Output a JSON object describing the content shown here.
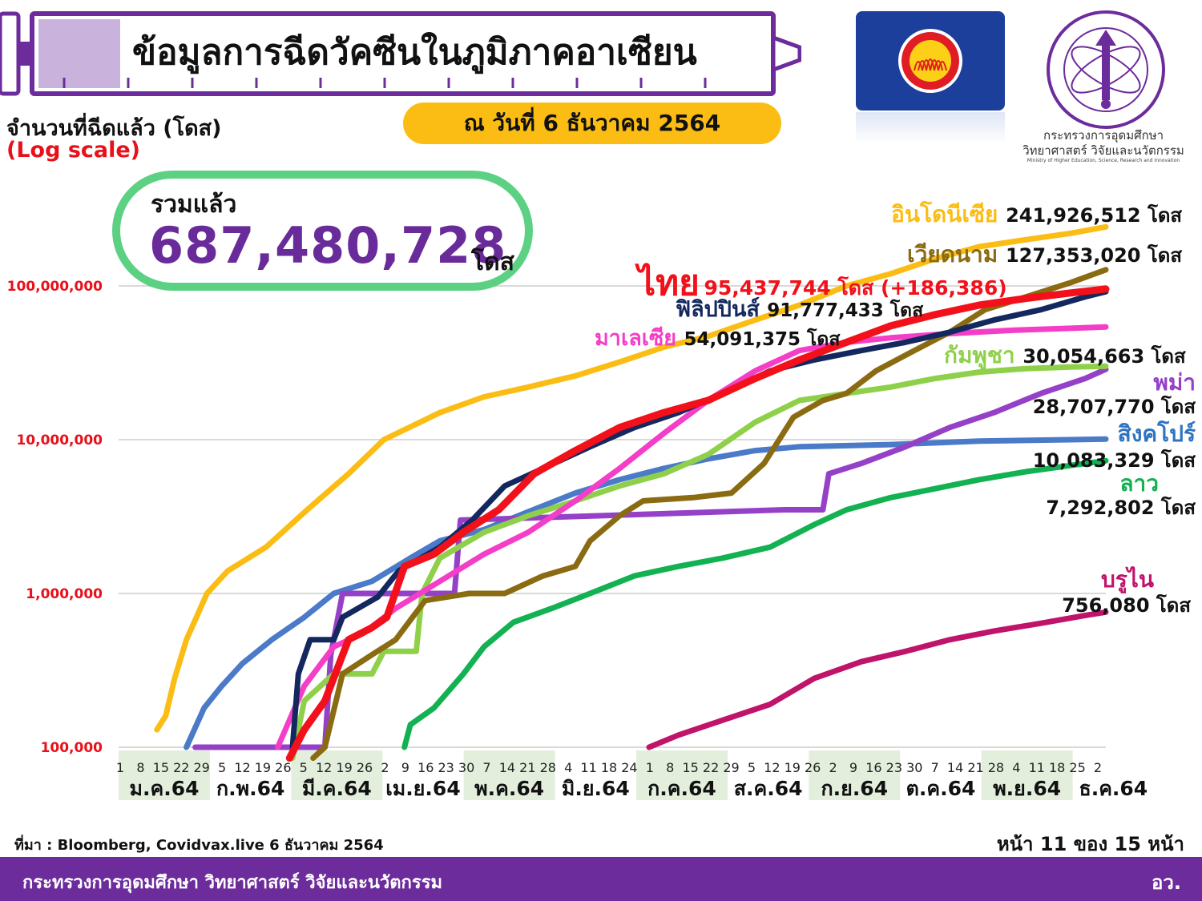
{
  "header": {
    "title": "ข้อมูลการฉีดวัคซีนในภูมิภาคอาเซียน",
    "date_label": "ณ วันที่ 6 ธันวาคม 2564"
  },
  "ministry": {
    "name_th": "กระทรวงการอุดมศึกษา วิทยาศาสตร์ วิจัยและนวัตกรรม",
    "name_en": "Ministry of Higher Education, Science, Research and Innovation"
  },
  "total": {
    "label": "รวมแล้ว",
    "value": "687,480,728",
    "unit": "โดส"
  },
  "source": "ที่มา : Bloomberg, Covidvax.live 6 ธันวาคม 2564",
  "page_label": "หน้า 11 ของ 15 หน้า",
  "footer": {
    "left": "กระทรวงการอุดมศึกษา วิทยาศาสตร์ วิจัยและนวัตกรรม",
    "right": "อว."
  },
  "colors": {
    "syringe": "#6d2c9b",
    "footer": "#6d2c9b",
    "date_pill": "#fbbd14",
    "total_border": "#5cd184",
    "month_band": "#e3efdc",
    "ytick": "#e8101a"
  },
  "chart_data": {
    "type": "line",
    "ylabel": "จำนวนที่ฉีดแล้ว (โดส)",
    "yscale_label": "(Log scale)",
    "log_scale": true,
    "ylim": [
      100000,
      300000000
    ],
    "yticks": [
      "100,000",
      "1,000,000",
      "10,000,000",
      "100,000,000"
    ],
    "ytick_values": [
      100000,
      1000000,
      10000000,
      100000000
    ],
    "grid": true,
    "day_ticks": [
      "1",
      "8",
      "15",
      "22",
      "29",
      "5",
      "12",
      "19",
      "26",
      "5",
      "12",
      "19",
      "26",
      "2",
      "9",
      "16",
      "23",
      "30",
      "7",
      "14",
      "21",
      "28",
      "4",
      "11",
      "18",
      "24",
      "1",
      "8",
      "15",
      "22",
      "29",
      "5",
      "12",
      "19",
      "26",
      "2",
      "9",
      "16",
      "23",
      "30",
      "7",
      "14",
      "21",
      "28",
      "4",
      "11",
      "18",
      "25",
      "2"
    ],
    "months": [
      {
        "label": "ม.ค.64",
        "shaded": true
      },
      {
        "label": "ก.พ.64",
        "shaded": false
      },
      {
        "label": "มี.ค.64",
        "shaded": true
      },
      {
        "label": "เม.ย.64",
        "shaded": false
      },
      {
        "label": "พ.ค.64",
        "shaded": true
      },
      {
        "label": "มิ.ย.64",
        "shaded": false
      },
      {
        "label": "ก.ค.64",
        "shaded": true
      },
      {
        "label": "ส.ค.64",
        "shaded": false
      },
      {
        "label": "ก.ย.64",
        "shaded": true
      },
      {
        "label": "ต.ค.64",
        "shaded": false
      },
      {
        "label": "พ.ย.64",
        "shaded": true
      },
      {
        "label": "ธ.ค.64",
        "shaded": false
      }
    ],
    "x_range": [
      "2021-01-01",
      "2021-12-02"
    ],
    "series": [
      {
        "name": "อินโดนีเซีย",
        "label": "241,926,512 โดส",
        "color": "#fbbd14",
        "points": [
          [
            "2021-01-14",
            130000
          ],
          [
            "2021-01-17",
            160000
          ],
          [
            "2021-01-20",
            280000
          ],
          [
            "2021-01-24",
            500000
          ],
          [
            "2021-01-31",
            1000000
          ],
          [
            "2021-02-07",
            1400000
          ],
          [
            "2021-02-20",
            2000000
          ],
          [
            "2021-03-06",
            3500000
          ],
          [
            "2021-03-20",
            6000000
          ],
          [
            "2021-04-01",
            10000000
          ],
          [
            "2021-04-20",
            15000000
          ],
          [
            "2021-05-05",
            19000000
          ],
          [
            "2021-05-20",
            22000000
          ],
          [
            "2021-06-05",
            26000000
          ],
          [
            "2021-06-20",
            32000000
          ],
          [
            "2021-07-05",
            40000000
          ],
          [
            "2021-07-20",
            47000000
          ],
          [
            "2021-08-05",
            60000000
          ],
          [
            "2021-08-20",
            75000000
          ],
          [
            "2021-09-05",
            100000000
          ],
          [
            "2021-09-20",
            120000000
          ],
          [
            "2021-10-05",
            150000000
          ],
          [
            "2021-10-20",
            180000000
          ],
          [
            "2021-11-05",
            200000000
          ],
          [
            "2021-11-20",
            220000000
          ],
          [
            "2021-12-02",
            241926512
          ]
        ]
      },
      {
        "name": "เวียดนาม",
        "label": "127,353,020 โดส",
        "color": "#8a6b12",
        "points": [
          [
            "2021-03-08",
            60000
          ],
          [
            "2021-03-12",
            100000
          ],
          [
            "2021-03-18",
            300000
          ],
          [
            "2021-03-28",
            400000
          ],
          [
            "2021-04-05",
            500000
          ],
          [
            "2021-04-15",
            900000
          ],
          [
            "2021-04-30",
            1000000
          ],
          [
            "2021-05-12",
            1000000
          ],
          [
            "2021-05-25",
            1300000
          ],
          [
            "2021-06-05",
            1500000
          ],
          [
            "2021-06-10",
            2200000
          ],
          [
            "2021-06-20",
            3200000
          ],
          [
            "2021-06-28",
            4000000
          ],
          [
            "2021-07-15",
            4200000
          ],
          [
            "2021-07-28",
            4500000
          ],
          [
            "2021-08-08",
            7000000
          ],
          [
            "2021-08-18",
            14000000
          ],
          [
            "2021-08-28",
            18000000
          ],
          [
            "2021-09-05",
            20000000
          ],
          [
            "2021-09-15",
            28000000
          ],
          [
            "2021-09-28",
            38000000
          ],
          [
            "2021-10-10",
            50000000
          ],
          [
            "2021-10-22",
            70000000
          ],
          [
            "2021-11-05",
            85000000
          ],
          [
            "2021-11-20",
            105000000
          ],
          [
            "2021-12-02",
            127353020
          ]
        ]
      },
      {
        "name": "ไทย",
        "label": "95,437,744 โดส (+186,386)",
        "color": "#f2101a",
        "points": [
          [
            "2021-02-28",
            80000
          ],
          [
            "2021-03-05",
            130000
          ],
          [
            "2021-03-12",
            200000
          ],
          [
            "2021-03-20",
            500000
          ],
          [
            "2021-03-28",
            600000
          ],
          [
            "2021-04-02",
            700000
          ],
          [
            "2021-04-08",
            1500000
          ],
          [
            "2021-04-18",
            1800000
          ],
          [
            "2021-04-28",
            2500000
          ],
          [
            "2021-05-10",
            3500000
          ],
          [
            "2021-05-22",
            6000000
          ],
          [
            "2021-06-05",
            8500000
          ],
          [
            "2021-06-20",
            12000000
          ],
          [
            "2021-07-05",
            15000000
          ],
          [
            "2021-07-20",
            18000000
          ],
          [
            "2021-08-05",
            25000000
          ],
          [
            "2021-08-20",
            33000000
          ],
          [
            "2021-09-05",
            43000000
          ],
          [
            "2021-09-20",
            55000000
          ],
          [
            "2021-10-05",
            65000000
          ],
          [
            "2021-10-20",
            75000000
          ],
          [
            "2021-11-05",
            83000000
          ],
          [
            "2021-11-20",
            90000000
          ],
          [
            "2021-12-02",
            95437744
          ]
        ]
      },
      {
        "name": "ฟิลิปปินส์",
        "label": "91,777,433 โดส",
        "color": "#13285e",
        "points": [
          [
            "2021-03-01",
            100000
          ],
          [
            "2021-03-03",
            300000
          ],
          [
            "2021-03-07",
            500000
          ],
          [
            "2021-03-15",
            500000
          ],
          [
            "2021-03-18",
            700000
          ],
          [
            "2021-03-30",
            950000
          ],
          [
            "2021-04-06",
            1400000
          ],
          [
            "2021-04-20",
            2000000
          ],
          [
            "2021-05-01",
            3000000
          ],
          [
            "2021-05-12",
            5000000
          ],
          [
            "2021-05-25",
            6500000
          ],
          [
            "2021-06-10",
            9000000
          ],
          [
            "2021-06-25",
            12000000
          ],
          [
            "2021-07-10",
            15000000
          ],
          [
            "2021-07-25",
            20000000
          ],
          [
            "2021-08-10",
            28000000
          ],
          [
            "2021-08-25",
            33000000
          ],
          [
            "2021-09-10",
            38000000
          ],
          [
            "2021-09-25",
            43000000
          ],
          [
            "2021-10-10",
            50000000
          ],
          [
            "2021-10-25",
            60000000
          ],
          [
            "2021-11-10",
            70000000
          ],
          [
            "2021-11-25",
            85000000
          ],
          [
            "2021-12-02",
            91777433
          ]
        ]
      },
      {
        "name": "มาเลเซีย",
        "label": "54,091,375 โดส",
        "color": "#f43ec7",
        "points": [
          [
            "2021-02-24",
            100000
          ],
          [
            "2021-03-05",
            250000
          ],
          [
            "2021-03-15",
            450000
          ],
          [
            "2021-03-25",
            550000
          ],
          [
            "2021-04-05",
            800000
          ],
          [
            "2021-04-20",
            1200000
          ],
          [
            "2021-05-05",
            1800000
          ],
          [
            "2021-05-20",
            2500000
          ],
          [
            "2021-06-05",
            4000000
          ],
          [
            "2021-06-20",
            6500000
          ],
          [
            "2021-07-05",
            11000000
          ],
          [
            "2021-07-20",
            18000000
          ],
          [
            "2021-08-05",
            28000000
          ],
          [
            "2021-08-20",
            38000000
          ],
          [
            "2021-09-05",
            43000000
          ],
          [
            "2021-09-20",
            46000000
          ],
          [
            "2021-10-10",
            49000000
          ],
          [
            "2021-11-01",
            51500000
          ],
          [
            "2021-11-20",
            53000000
          ],
          [
            "2021-12-02",
            54091375
          ]
        ]
      },
      {
        "name": "กัมพูชา",
        "label": "30,054,663 โดส",
        "color": "#8fd04a",
        "points": [
          [
            "2021-03-01",
            80000
          ],
          [
            "2021-03-05",
            200000
          ],
          [
            "2021-03-15",
            300000
          ],
          [
            "2021-03-28",
            300000
          ],
          [
            "2021-04-01",
            420000
          ],
          [
            "2021-04-12",
            420000
          ],
          [
            "2021-04-14",
            1000000
          ],
          [
            "2021-04-20",
            1700000
          ],
          [
            "2021-05-05",
            2500000
          ],
          [
            "2021-05-20",
            3200000
          ],
          [
            "2021-06-05",
            4000000
          ],
          [
            "2021-06-20",
            5000000
          ],
          [
            "2021-07-05",
            6000000
          ],
          [
            "2021-07-20",
            8000000
          ],
          [
            "2021-08-05",
            13000000
          ],
          [
            "2021-08-20",
            18000000
          ],
          [
            "2021-09-05",
            20000000
          ],
          [
            "2021-09-20",
            22000000
          ],
          [
            "2021-10-05",
            25000000
          ],
          [
            "2021-10-20",
            27500000
          ],
          [
            "2021-11-05",
            29000000
          ],
          [
            "2021-11-20",
            29700000
          ],
          [
            "2021-12-02",
            30054663
          ]
        ]
      },
      {
        "name": "พม่า",
        "label": "28,707,770 โดส",
        "color": "#9541c7",
        "points": [
          [
            "2021-01-27",
            100000
          ],
          [
            "2021-03-12",
            100000
          ],
          [
            "2021-03-14",
            400000
          ],
          [
            "2021-03-18",
            1000000
          ],
          [
            "2021-04-25",
            1000000
          ],
          [
            "2021-04-27",
            3000000
          ],
          [
            "2021-07-05",
            3300000
          ],
          [
            "2021-08-15",
            3500000
          ],
          [
            "2021-08-28",
            3500000
          ],
          [
            "2021-08-30",
            6000000
          ],
          [
            "2021-09-10",
            7000000
          ],
          [
            "2021-09-25",
            9000000
          ],
          [
            "2021-10-10",
            12000000
          ],
          [
            "2021-10-25",
            15000000
          ],
          [
            "2021-11-10",
            20000000
          ],
          [
            "2021-11-25",
            25000000
          ],
          [
            "2021-12-02",
            28707770
          ]
        ]
      },
      {
        "name": "สิงคโปร์",
        "label": "10,083,329 โดส",
        "color": "#4a7ac8",
        "points": [
          [
            "2021-01-24",
            100000
          ],
          [
            "2021-01-30",
            180000
          ],
          [
            "2021-02-05",
            250000
          ],
          [
            "2021-02-12",
            350000
          ],
          [
            "2021-02-22",
            500000
          ],
          [
            "2021-03-05",
            700000
          ],
          [
            "2021-03-15",
            1000000
          ],
          [
            "2021-03-28",
            1200000
          ],
          [
            "2021-04-10",
            1700000
          ],
          [
            "2021-04-20",
            2200000
          ],
          [
            "2021-05-05",
            2600000
          ],
          [
            "2021-05-20",
            3400000
          ],
          [
            "2021-06-05",
            4500000
          ],
          [
            "2021-06-20",
            5500000
          ],
          [
            "2021-07-05",
            6500000
          ],
          [
            "2021-07-20",
            7500000
          ],
          [
            "2021-08-05",
            8500000
          ],
          [
            "2021-08-20",
            9000000
          ],
          [
            "2021-09-20",
            9300000
          ],
          [
            "2021-10-20",
            9800000
          ],
          [
            "2021-11-20",
            10000000
          ],
          [
            "2021-12-02",
            10083329
          ]
        ]
      },
      {
        "name": "ลาว",
        "label": "7,292,802 โดส",
        "color": "#12b152",
        "points": [
          [
            "2021-04-08",
            100000
          ],
          [
            "2021-04-10",
            140000
          ],
          [
            "2021-04-18",
            180000
          ],
          [
            "2021-04-28",
            300000
          ],
          [
            "2021-05-05",
            450000
          ],
          [
            "2021-05-15",
            650000
          ],
          [
            "2021-05-28",
            800000
          ],
          [
            "2021-06-10",
            1000000
          ],
          [
            "2021-06-25",
            1300000
          ],
          [
            "2021-07-10",
            1500000
          ],
          [
            "2021-07-25",
            1700000
          ],
          [
            "2021-08-10",
            2000000
          ],
          [
            "2021-08-25",
            2800000
          ],
          [
            "2021-09-05",
            3500000
          ],
          [
            "2021-09-20",
            4200000
          ],
          [
            "2021-10-05",
            4800000
          ],
          [
            "2021-10-20",
            5500000
          ],
          [
            "2021-11-05",
            6200000
          ],
          [
            "2021-11-20",
            6800000
          ],
          [
            "2021-12-02",
            7292802
          ]
        ]
      },
      {
        "name": "บรูไน",
        "label": "756,080 โดส",
        "color": "#c0146b",
        "points": [
          [
            "2021-06-30",
            100000
          ],
          [
            "2021-07-10",
            120000
          ],
          [
            "2021-07-25",
            150000
          ],
          [
            "2021-08-10",
            190000
          ],
          [
            "2021-08-25",
            280000
          ],
          [
            "2021-09-10",
            360000
          ],
          [
            "2021-09-25",
            420000
          ],
          [
            "2021-10-10",
            500000
          ],
          [
            "2021-10-25",
            570000
          ],
          [
            "2021-11-10",
            640000
          ],
          [
            "2021-11-25",
            720000
          ],
          [
            "2021-12-02",
            756080
          ]
        ]
      }
    ]
  }
}
